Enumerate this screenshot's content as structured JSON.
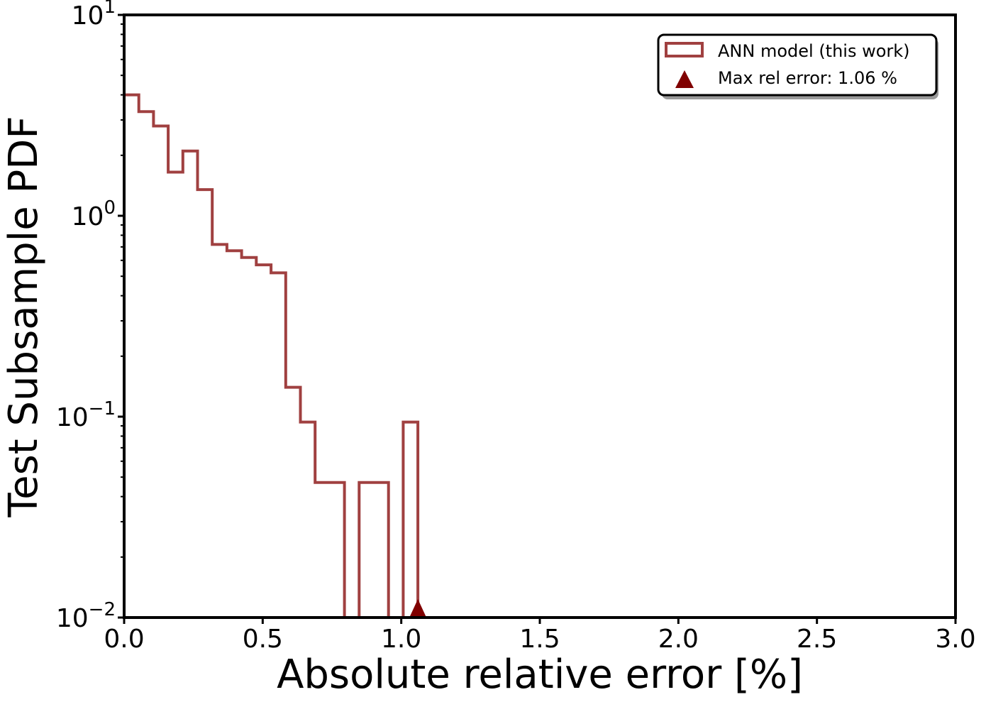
{
  "chart_data": {
    "type": "histogram",
    "xlabel": "Absolute relative error [%]",
    "ylabel": "Test Subsample PDF",
    "xlim": [
      0.0,
      3.0
    ],
    "ylim": [
      0.01,
      10
    ],
    "yscale": "log",
    "xticks": [
      "0.0",
      "0.5",
      "1.0",
      "1.5",
      "2.0",
      "2.5",
      "3.0"
    ],
    "yticks": [
      {
        "base": "10",
        "exp": "−2",
        "value": 0.01
      },
      {
        "base": "10",
        "exp": "−1",
        "value": 0.1
      },
      {
        "base": "10",
        "exp": "0",
        "value": 1
      },
      {
        "base": "10",
        "exp": "1",
        "value": 10
      }
    ],
    "bin_edges": [
      0.0,
      0.053,
      0.106,
      0.159,
      0.212,
      0.265,
      0.318,
      0.371,
      0.424,
      0.477,
      0.53,
      0.583,
      0.636,
      0.689,
      0.742,
      0.795,
      0.848,
      0.901,
      0.954,
      1.007,
      1.06
    ],
    "values": [
      4.0,
      3.3,
      2.8,
      1.65,
      2.1,
      1.35,
      0.72,
      0.67,
      0.62,
      0.57,
      0.52,
      0.14,
      0.094,
      0.047,
      0.047,
      0,
      0.047,
      0.047,
      0,
      0.094
    ],
    "max_marker": {
      "x": 1.06,
      "label": "Max rel error: 1.06 %"
    },
    "series_name": "ANN model (this work)",
    "colors": {
      "hist": "#a04040",
      "marker": "#800000",
      "axes": "#000000"
    },
    "legend_location": "upper right",
    "grid": false
  }
}
